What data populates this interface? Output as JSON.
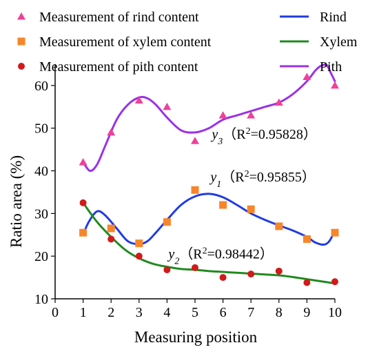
{
  "chart_data": {
    "type": "scatter",
    "xlabel": "Measuring position",
    "ylabel": "Ratio area (%)",
    "xlim": [
      0,
      10
    ],
    "ylim": [
      10,
      65
    ],
    "x_ticks": [
      0,
      1,
      2,
      3,
      4,
      5,
      6,
      7,
      8,
      9,
      10
    ],
    "y_ticks": [
      10,
      20,
      30,
      40,
      50,
      60
    ],
    "grid": false,
    "legend_position": "top",
    "series": [
      {
        "key": "rind",
        "name": "Measurement of rind content",
        "kind": "scatter",
        "marker": "triangle",
        "color": "#f0409a",
        "x": [
          1,
          2,
          3,
          4,
          5,
          6,
          7,
          8,
          9,
          10
        ],
        "y": [
          42,
          49,
          56.5,
          55,
          47,
          53,
          53,
          56,
          62,
          60
        ]
      },
      {
        "key": "xylem",
        "name": "Measurement of xylem content",
        "kind": "scatter",
        "marker": "square",
        "color": "#f7862a",
        "x": [
          1,
          2,
          3,
          4,
          5,
          6,
          7,
          8,
          9,
          10
        ],
        "y": [
          25.5,
          26.5,
          23,
          28,
          35.5,
          32,
          31,
          27,
          24,
          25.5
        ]
      },
      {
        "key": "pith",
        "name": "Measurement of pith content",
        "kind": "scatter",
        "marker": "circle",
        "color": "#d11a1a",
        "x": [
          1,
          2,
          3,
          4,
          5,
          6,
          7,
          8,
          9,
          10
        ],
        "y": [
          32.5,
          24,
          20,
          16.8,
          17.3,
          15,
          15.8,
          16.5,
          13.8,
          14
        ]
      },
      {
        "key": "rind_fit",
        "name": "Rind",
        "kind": "line",
        "color": "#1f3be6",
        "x": [
          1,
          1.2,
          1.5,
          1.8,
          2.2,
          2.6,
          3.0,
          3.3,
          3.6,
          4.0,
          4.5,
          5.0,
          5.5,
          6.0,
          6.5,
          7.0,
          7.5,
          8.0,
          8.5,
          9.0,
          9.3,
          9.6,
          9.8,
          10.0
        ],
        "y": [
          25.0,
          28.0,
          30.5,
          29.5,
          26.5,
          23.5,
          22.8,
          23.5,
          25.5,
          28.5,
          32.0,
          34.0,
          34.6,
          33.8,
          32.0,
          30.0,
          28.5,
          27.2,
          26.0,
          24.5,
          23.2,
          22.7,
          23.5,
          26.0
        ]
      },
      {
        "key": "xylem_fit",
        "name": "Xylem",
        "kind": "line",
        "color": "#1f8a1f",
        "x": [
          1,
          1.5,
          2,
          2.5,
          3,
          3.5,
          4,
          4.5,
          5,
          5.5,
          6,
          6.5,
          7,
          7.5,
          8,
          8.5,
          9,
          9.5,
          10
        ],
        "y": [
          32.5,
          28.0,
          24.5,
          21.5,
          19.5,
          18.2,
          17.5,
          17.0,
          16.8,
          16.5,
          16.3,
          16.1,
          15.9,
          15.7,
          15.5,
          15.1,
          14.6,
          14.1,
          13.6
        ]
      },
      {
        "key": "pith_fit",
        "name": "Pith",
        "kind": "line",
        "color": "#9b30e8",
        "x": [
          1,
          1.25,
          1.5,
          1.8,
          2.2,
          2.6,
          3.0,
          3.3,
          3.6,
          4.0,
          4.5,
          5.0,
          5.5,
          6.0,
          6.5,
          7.0,
          7.5,
          8.0,
          8.5,
          9.0,
          9.3,
          9.5,
          9.7,
          9.85,
          10.0
        ],
        "y": [
          42.0,
          40.0,
          41.5,
          46.0,
          52.0,
          55.5,
          57.2,
          57.0,
          55.5,
          52.5,
          49.5,
          49.0,
          50.0,
          52.0,
          53.0,
          54.0,
          55.0,
          56.0,
          58.0,
          61.0,
          63.5,
          64.6,
          64.8,
          63.0,
          61.0
        ]
      }
    ],
    "annotations": [
      {
        "label": "y",
        "sub": "3",
        "text": "（R",
        "sup": "2",
        "text2": "=0.95828）",
        "x": 5.6,
        "y": 47.5
      },
      {
        "label": "y",
        "sub": "1",
        "text": "（R",
        "sup": "2",
        "text2": "=0.95855）",
        "x": 5.55,
        "y": 37.5
      },
      {
        "label": "y",
        "sub": "2",
        "text": "（R",
        "sup": "2",
        "text2": "=0.98442）",
        "x": 4.05,
        "y": 19.5
      }
    ]
  }
}
